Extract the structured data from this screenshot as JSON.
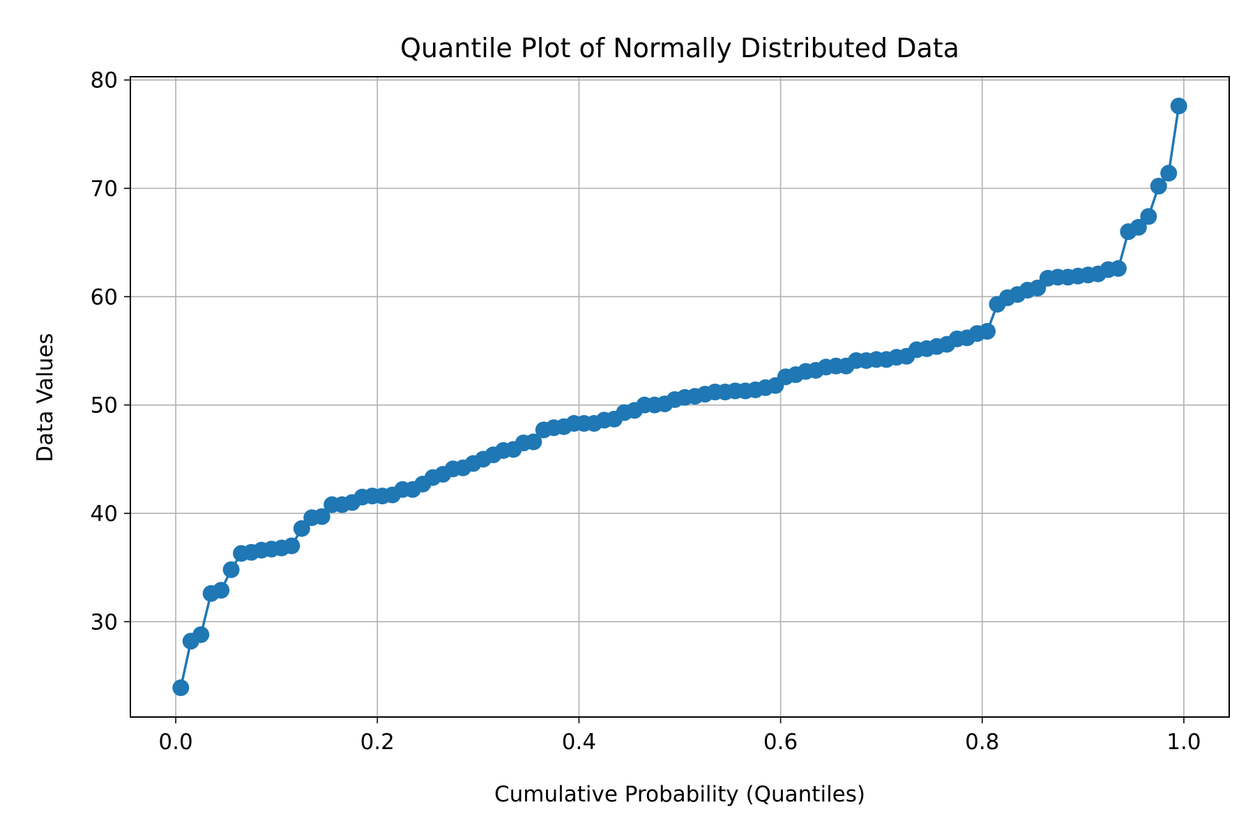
{
  "chart_data": {
    "type": "line",
    "title": "Quantile Plot of Normally Distributed Data",
    "xlabel": "Cumulative Probability (Quantiles)",
    "ylabel": "Data Values",
    "xlim": [
      -0.045,
      1.045
    ],
    "ylim": [
      21.2,
      80.3
    ],
    "xticks": [
      0.0,
      0.2,
      0.4,
      0.6,
      0.8,
      1.0
    ],
    "xtick_labels": [
      "0.0",
      "0.2",
      "0.4",
      "0.6",
      "0.8",
      "1.0"
    ],
    "yticks": [
      30,
      40,
      50,
      60,
      70,
      80
    ],
    "ytick_labels": [
      "30",
      "40",
      "50",
      "60",
      "70",
      "80"
    ],
    "grid": true,
    "line_color": "#1f77b4",
    "marker": "circle",
    "x": [
      0.005,
      0.015,
      0.025,
      0.035,
      0.045,
      0.055,
      0.065,
      0.075,
      0.085,
      0.095,
      0.105,
      0.115,
      0.125,
      0.135,
      0.145,
      0.155,
      0.165,
      0.175,
      0.185,
      0.195,
      0.205,
      0.215,
      0.225,
      0.235,
      0.245,
      0.255,
      0.265,
      0.275,
      0.285,
      0.295,
      0.305,
      0.315,
      0.325,
      0.335,
      0.345,
      0.355,
      0.365,
      0.375,
      0.385,
      0.395,
      0.405,
      0.415,
      0.425,
      0.435,
      0.445,
      0.455,
      0.465,
      0.475,
      0.485,
      0.495,
      0.505,
      0.515,
      0.525,
      0.535,
      0.545,
      0.555,
      0.565,
      0.575,
      0.585,
      0.595,
      0.605,
      0.615,
      0.625,
      0.635,
      0.645,
      0.655,
      0.665,
      0.675,
      0.685,
      0.695,
      0.705,
      0.715,
      0.725,
      0.735,
      0.745,
      0.755,
      0.765,
      0.775,
      0.785,
      0.795,
      0.805,
      0.815,
      0.825,
      0.835,
      0.845,
      0.855,
      0.865,
      0.875,
      0.885,
      0.895,
      0.905,
      0.915,
      0.925,
      0.935,
      0.945,
      0.955,
      0.965,
      0.975,
      0.985,
      0.995
    ],
    "y": [
      23.9,
      28.2,
      28.8,
      32.6,
      32.9,
      34.8,
      36.3,
      36.4,
      36.6,
      36.7,
      36.8,
      37.0,
      38.6,
      39.6,
      39.7,
      40.8,
      40.8,
      41.0,
      41.5,
      41.6,
      41.6,
      41.7,
      42.2,
      42.2,
      42.7,
      43.3,
      43.6,
      44.1,
      44.2,
      44.6,
      45.0,
      45.4,
      45.8,
      45.9,
      46.5,
      46.6,
      47.7,
      47.9,
      48.0,
      48.3,
      48.3,
      48.3,
      48.6,
      48.7,
      49.3,
      49.5,
      50.0,
      50.0,
      50.1,
      50.5,
      50.7,
      50.8,
      51.0,
      51.2,
      51.2,
      51.3,
      51.3,
      51.4,
      51.6,
      51.8,
      52.6,
      52.8,
      53.1,
      53.2,
      53.5,
      53.6,
      53.6,
      54.1,
      54.1,
      54.2,
      54.2,
      54.4,
      54.5,
      55.1,
      55.2,
      55.4,
      55.6,
      56.1,
      56.2,
      56.6,
      56.8,
      59.3,
      59.9,
      60.2,
      60.6,
      60.8,
      61.7,
      61.8,
      61.8,
      61.9,
      62.0,
      62.1,
      62.5,
      62.6,
      66.0,
      66.4,
      67.4,
      70.2,
      71.4,
      77.6
    ]
  }
}
